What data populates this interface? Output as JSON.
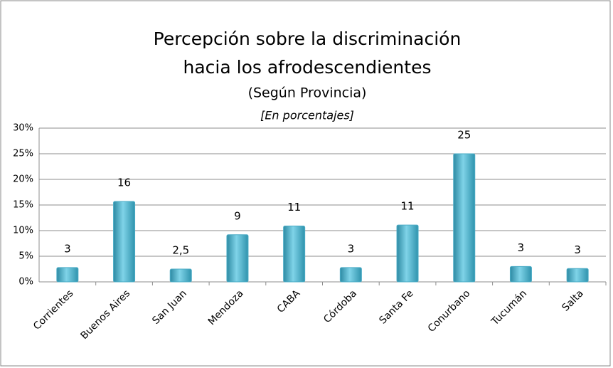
{
  "chart_data": {
    "type": "bar",
    "title": [
      "Percepción sobre la discriminación",
      "hacia los afrodescendientes"
    ],
    "subtitle": "(Según Provincia)",
    "note": "[En porcentajes]",
    "categories": [
      "Corrientes",
      "Buenos Aires",
      "San Juan",
      "Mendoza",
      "CABA",
      "Córdoba",
      "Santa Fe",
      "Conurbano",
      "Tucumán",
      "Salta"
    ],
    "values": [
      2.8,
      15.7,
      2.5,
      9.2,
      10.9,
      2.8,
      11.1,
      25,
      3,
      2.6
    ],
    "value_labels": [
      "3",
      "16",
      "2,5",
      "9",
      "11",
      "3",
      "11",
      "25",
      "3",
      "3"
    ],
    "color": "#4bacc6",
    "ylim": [
      0,
      30
    ],
    "yticks": [
      {
        "value": 0,
        "label": "0%"
      },
      {
        "value": 5,
        "label": "5%"
      },
      {
        "value": 10,
        "label": "10%"
      },
      {
        "value": 15,
        "label": "15%"
      },
      {
        "value": 20,
        "label": "20%"
      },
      {
        "value": 25,
        "label": "25%"
      },
      {
        "value": 30,
        "label": "30%"
      }
    ],
    "grid": true
  }
}
